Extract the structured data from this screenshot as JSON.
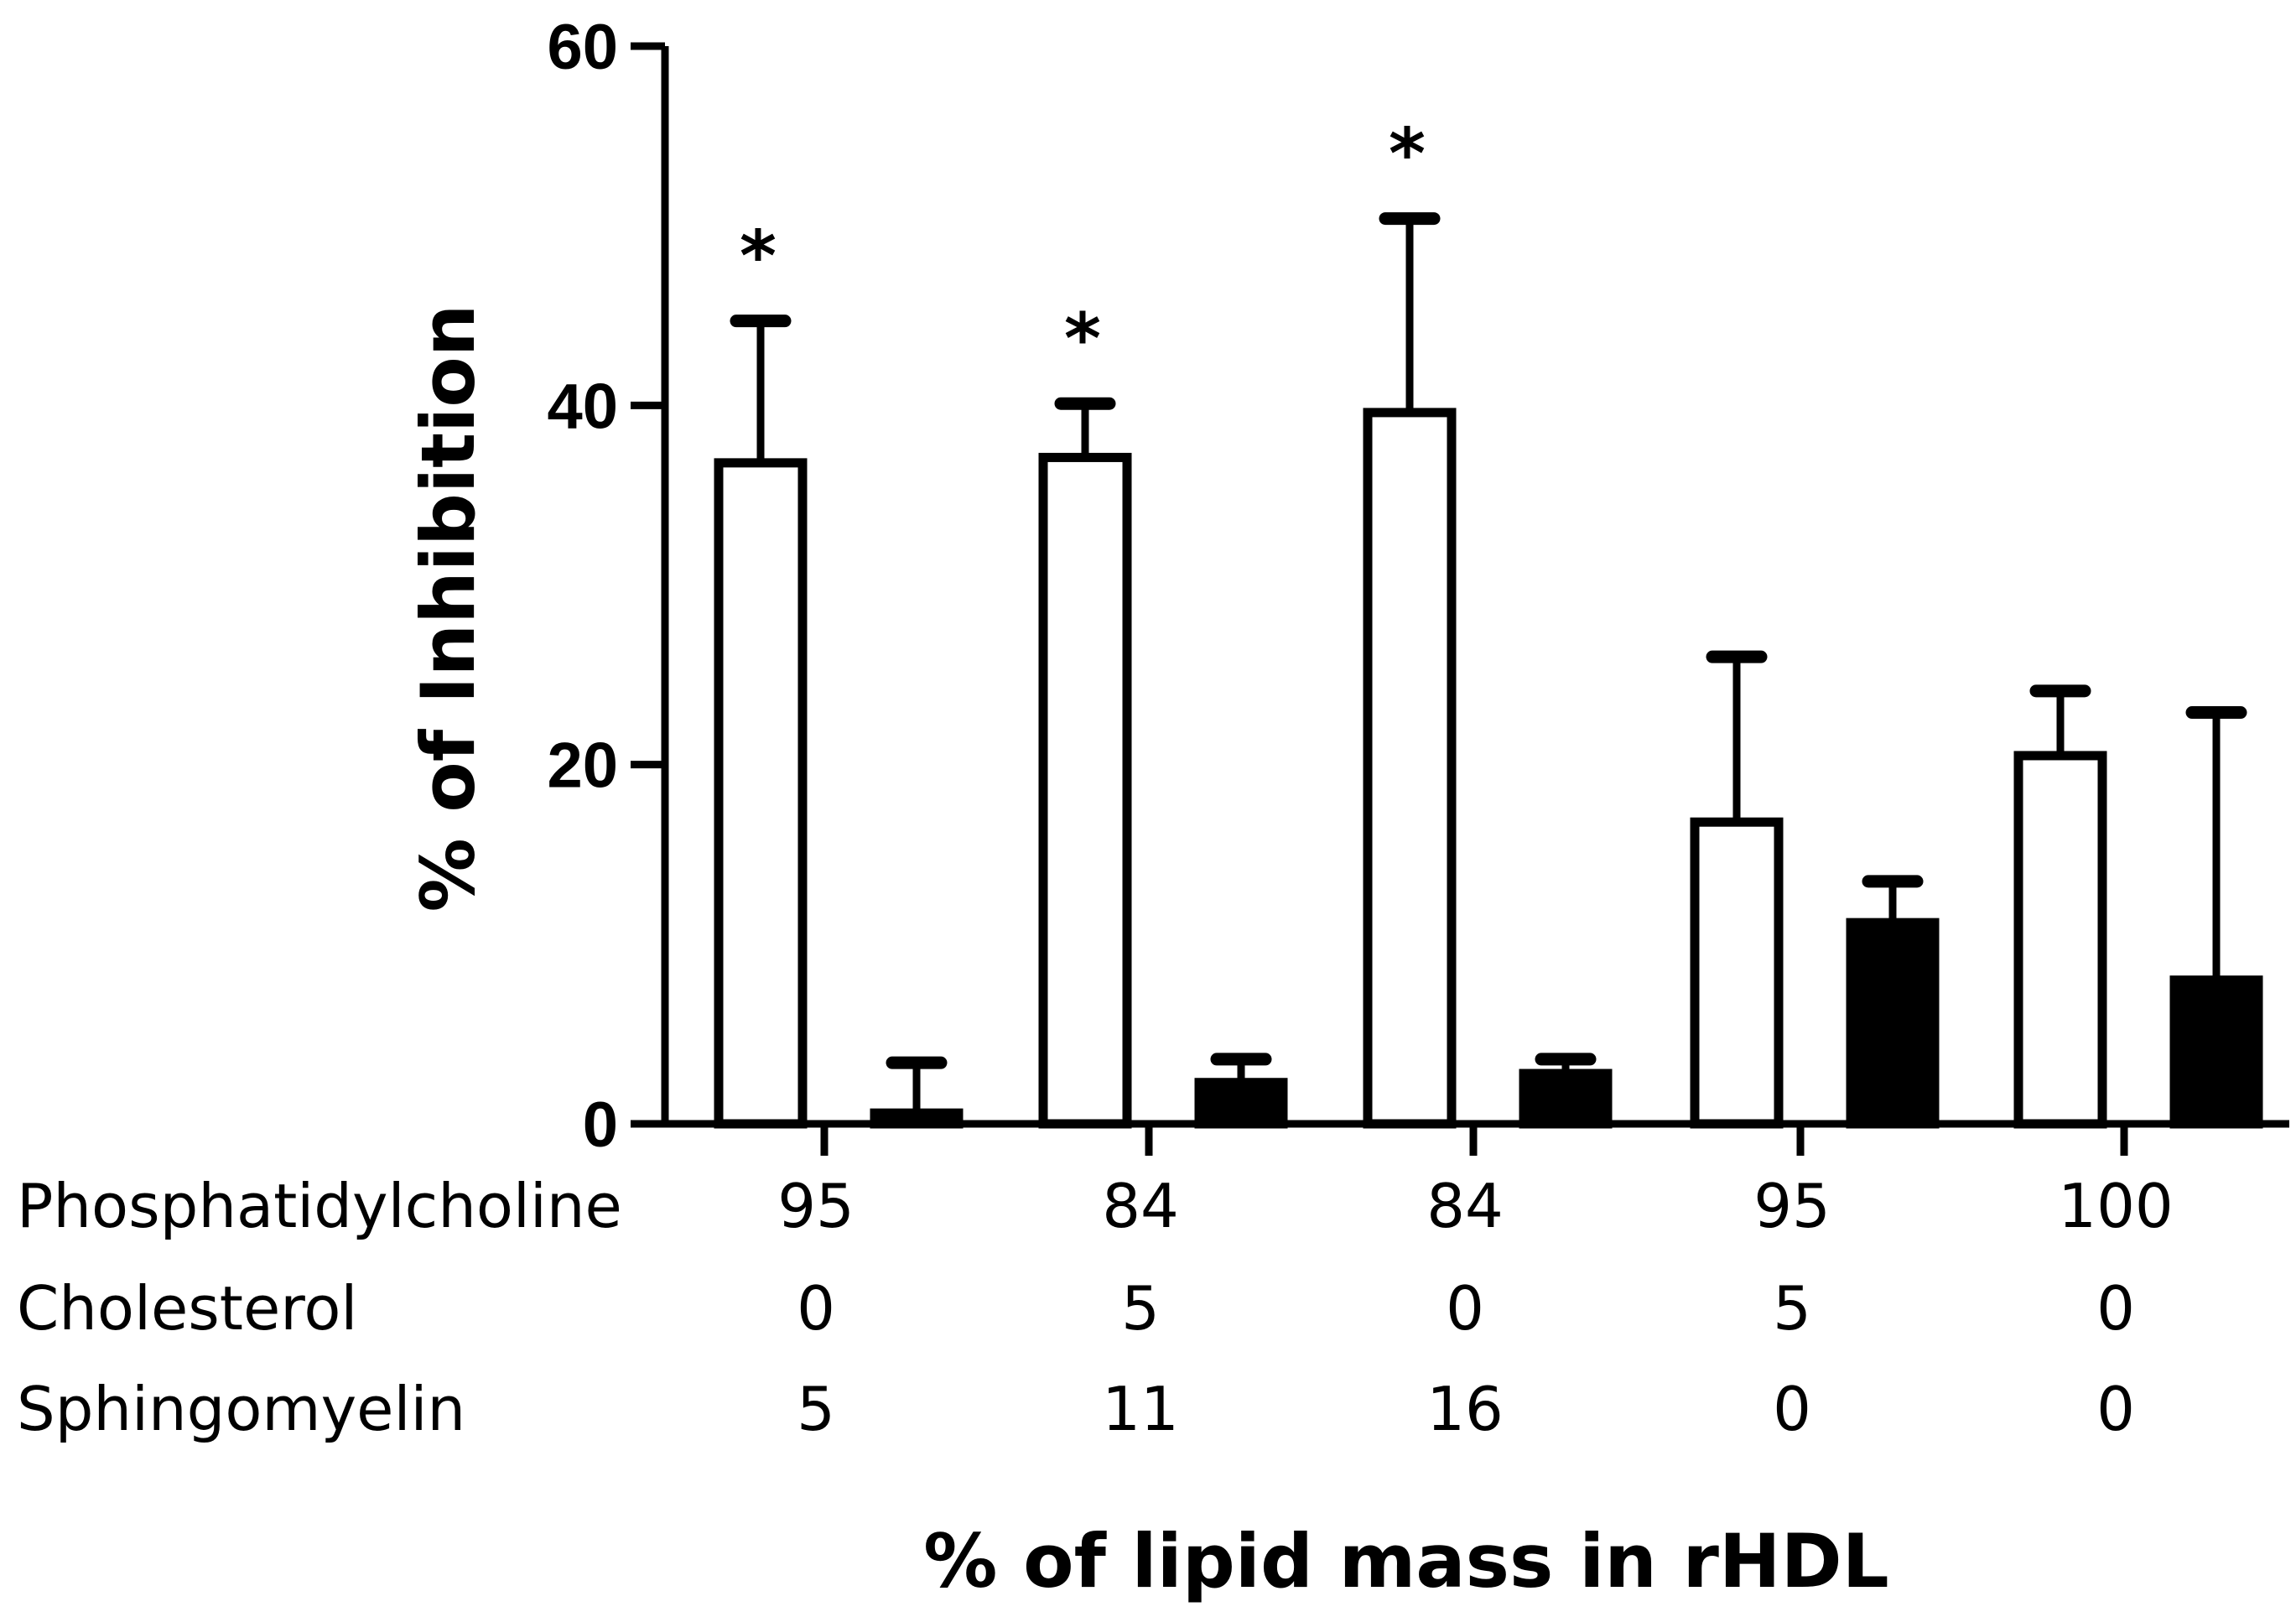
{
  "chart_data": {
    "type": "bar",
    "ylabel": "% of Inhibition",
    "xlabel": "% of lipid mass in rHDL",
    "ylim": [
      0,
      60
    ],
    "yticks": [
      0,
      20,
      40,
      60
    ],
    "ytick_labels": [
      "0",
      "20",
      "40",
      "60"
    ],
    "row_labels": [
      "Phosphatidylcholine",
      "Cholesterol",
      "Sphingomyelin"
    ],
    "groups": [
      {
        "phosphatidylcholine": "95",
        "cholesterol": "0",
        "sphingomyelin": "5"
      },
      {
        "phosphatidylcholine": "84",
        "cholesterol": "5",
        "sphingomyelin": "11"
      },
      {
        "phosphatidylcholine": "84",
        "cholesterol": "0",
        "sphingomyelin": "16"
      },
      {
        "phosphatidylcholine": "95",
        "cholesterol": "5",
        "sphingomyelin": "0"
      },
      {
        "phosphatidylcholine": "100",
        "cholesterol": "0",
        "sphingomyelin": "0"
      }
    ],
    "series": [
      {
        "fill": "#ffffff",
        "values": [
          36.8,
          37.1,
          39.6,
          16.8,
          20.5
        ],
        "errors": [
          7.9,
          3.0,
          10.8,
          9.2,
          3.6
        ]
      },
      {
        "fill": "#000000",
        "values": [
          0.6,
          2.3,
          2.8,
          11.2,
          8.0
        ],
        "errors": [
          2.8,
          1.3,
          0.8,
          2.3,
          14.9
        ]
      }
    ],
    "annotations": [
      {
        "text": "*",
        "group": 0,
        "series": 0
      },
      {
        "text": "*",
        "group": 1,
        "series": 0
      },
      {
        "text": "*",
        "group": 2,
        "series": 0
      }
    ],
    "grid": false,
    "legend": "none"
  }
}
